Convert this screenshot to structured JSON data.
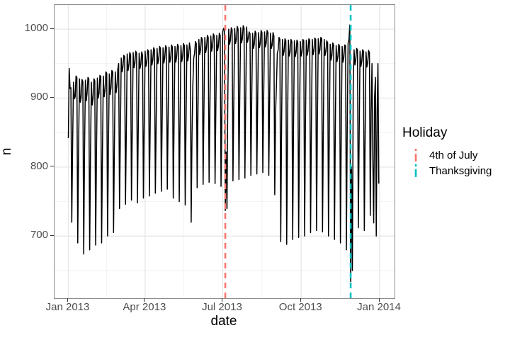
{
  "chart_data": {
    "type": "line",
    "title": "",
    "xlabel": "date",
    "ylabel": "n",
    "legend_title": "Holiday",
    "legend_position": "right",
    "grid": true,
    "line_color": "#000000",
    "x_start_date": "2013-01-01",
    "x_interval": "day",
    "x_tick_labels": [
      "Jan 2013",
      "Apr 2013",
      "Jul 2013",
      "Oct 2013",
      "Jan 2014"
    ],
    "x_tick_days": [
      0,
      90,
      181,
      273,
      365
    ],
    "x_minor_tick_days": [
      45,
      135,
      227,
      319
    ],
    "y_ticks": [
      700,
      800,
      900,
      1000
    ],
    "y_minor_ticks": [
      650,
      750,
      850,
      950
    ],
    "ylim": [
      610,
      1035
    ],
    "holidays": [
      {
        "name": "4th of July",
        "date": "2013-07-04",
        "day": 184,
        "color": "#F8766D",
        "linetype": "dashed"
      },
      {
        "name": "Thanksgiving",
        "date": "2013-11-28",
        "day": 331,
        "color": "#00BFC4",
        "linetype": "dashed"
      }
    ],
    "series": [
      {
        "name": "n",
        "values": [
          842,
          943,
          914,
          915,
          720,
          832,
          923,
          899,
          902,
          932,
          930,
          690,
          828,
          928,
          894,
          901,
          927,
          924,
          674,
          825,
          926,
          896,
          908,
          930,
          928,
          680,
          823,
          923,
          890,
          900,
          928,
          925,
          687,
          820,
          929,
          900,
          907,
          933,
          931,
          690,
          825,
          932,
          902,
          911,
          938,
          936,
          700,
          830,
          935,
          905,
          915,
          940,
          938,
          705,
          833,
          938,
          908,
          918,
          942,
          950,
          740,
          850,
          958,
          938,
          945,
          962,
          960,
          746,
          856,
          964,
          940,
          948,
          966,
          963,
          752,
          860,
          966,
          944,
          950,
          968,
          965,
          748,
          858,
          965,
          943,
          949,
          967,
          962,
          755,
          862,
          968,
          946,
          952,
          970,
          968,
          758,
          865,
          970,
          948,
          955,
          973,
          970,
          762,
          868,
          972,
          950,
          957,
          975,
          972,
          765,
          870,
          973,
          951,
          958,
          976,
          973,
          768,
          872,
          974,
          952,
          959,
          977,
          974,
          755,
          870,
          975,
          952,
          960,
          978,
          975,
          750,
          869,
          976,
          953,
          961,
          979,
          976,
          745,
          868,
          977,
          954,
          962,
          980,
          970,
          720,
          850,
          920,
          958,
          965,
          982,
          979,
          770,
          885,
          985,
          963,
          970,
          988,
          985,
          775,
          888,
          988,
          966,
          973,
          991,
          988,
          778,
          890,
          990,
          968,
          975,
          993,
          990,
          776,
          891,
          991,
          969,
          976,
          994,
          991,
          772,
          892,
          996,
          1001,
          998,
          737,
          822,
          740,
          905,
          1000,
          978,
          984,
          1002,
          999,
          780,
          900,
          1001,
          979,
          985,
          1004,
          1000,
          782,
          902,
          1002,
          980,
          986,
          1005,
          1001,
          784,
          903,
          1003,
          981,
          987,
          996,
          993,
          788,
          898,
          994,
          972,
          978,
          997,
          994,
          790,
          899,
          995,
          973,
          979,
          998,
          995,
          792,
          900,
          996,
          974,
          980,
          998,
          995,
          788,
          898,
          994,
          972,
          977,
          995,
          990,
          760,
          880,
          920,
          965,
          970,
          988,
          985,
          692,
          860,
          985,
          962,
          968,
          986,
          983,
          688,
          858,
          984,
          961,
          967,
          985,
          982,
          695,
          859,
          983,
          960,
          966,
          984,
          981,
          698,
          860,
          982,
          961,
          967,
          985,
          983,
          700,
          862,
          984,
          962,
          968,
          986,
          984,
          705,
          863,
          985,
          963,
          969,
          987,
          985,
          708,
          864,
          986,
          964,
          970,
          988,
          986,
          706,
          863,
          985,
          962,
          968,
          983,
          980,
          700,
          858,
          978,
          955,
          962,
          980,
          977,
          695,
          856,
          976,
          953,
          960,
          978,
          975,
          690,
          855,
          975,
          952,
          959,
          977,
          976,
          680,
          860,
          980,
          985,
          1006,
          634,
          800,
          650,
          920,
          970,
          948,
          955,
          972,
          970,
          712,
          852,
          968,
          946,
          953,
          970,
          968,
          708,
          850,
          967,
          945,
          952,
          969,
          966,
          730,
          880,
          950,
          810,
          719,
          900,
          930,
          700,
          880,
          950,
          776
        ]
      }
    ]
  }
}
